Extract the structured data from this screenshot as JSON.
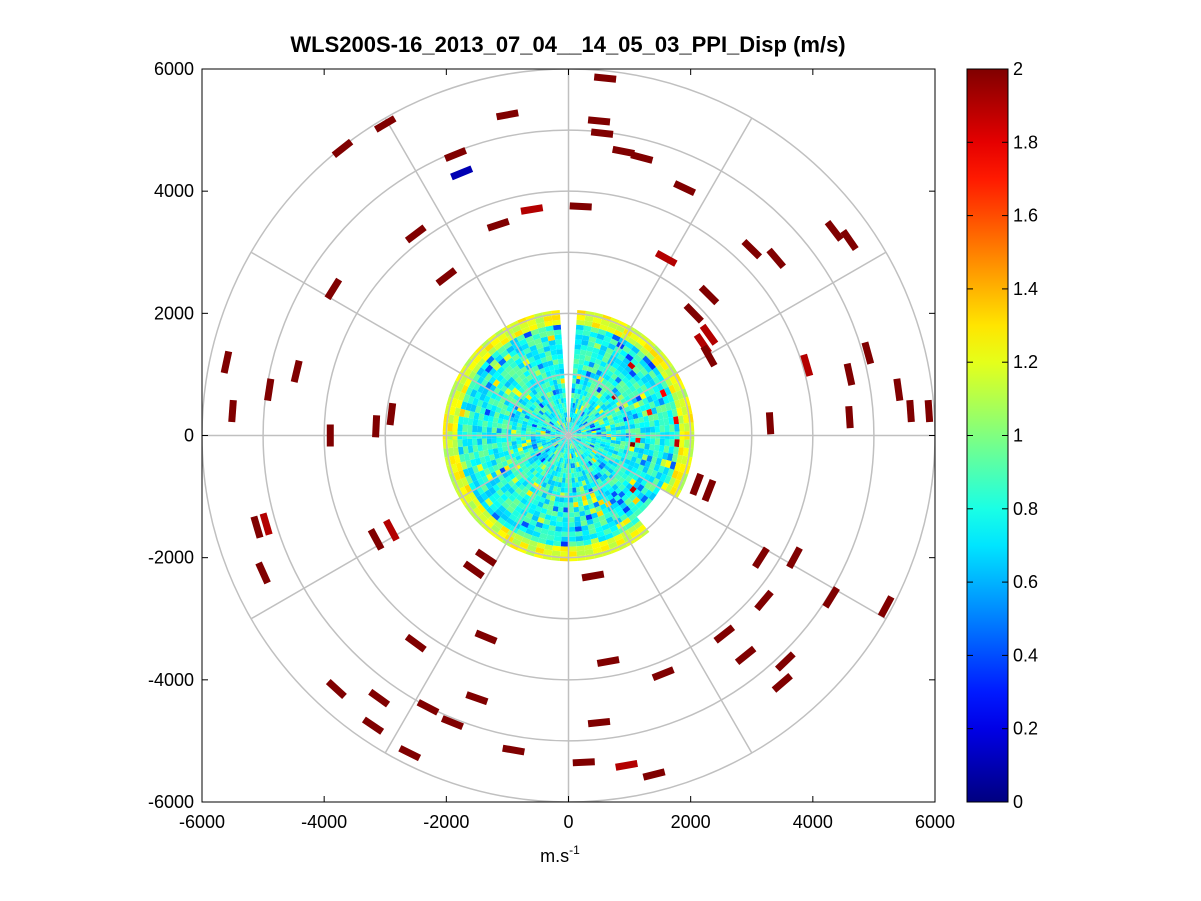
{
  "chart_data": {
    "type": "heatmap",
    "subtype": "polar-ppi",
    "title": "WLS200S-16_2013_07_04__14_05_03_PPI_Disp (m/s)",
    "xlabel": "m.s",
    "xlabel_superscript": "-1",
    "ylabel": "",
    "xlim": [
      -6000,
      6000
    ],
    "ylim": [
      -6000,
      6000
    ],
    "x_ticks": [
      -6000,
      -4000,
      -2000,
      0,
      2000,
      4000,
      6000
    ],
    "y_ticks": [
      -6000,
      -4000,
      -2000,
      0,
      2000,
      4000,
      6000
    ],
    "x_tick_labels": [
      "-6000",
      "-4000",
      "-2000",
      "0",
      "2000",
      "4000",
      "6000"
    ],
    "y_tick_labels": [
      "-6000",
      "-4000",
      "-2000",
      "0",
      "2000",
      "4000",
      "6000"
    ],
    "polar_grid": {
      "ring_radii": [
        1000,
        2000,
        3000,
        4000,
        5000,
        6000
      ],
      "spoke_angles_deg": [
        0,
        30,
        60,
        90,
        120,
        150,
        180,
        210,
        240,
        270,
        300,
        330
      ]
    },
    "colorbar": {
      "colormap": "jet",
      "min": 0,
      "max": 2,
      "ticks": [
        0,
        0.2,
        0.4,
        0.6,
        0.8,
        1,
        1.2,
        1.4,
        1.6,
        1.8,
        2
      ],
      "tick_labels": [
        "0",
        "0.2",
        "0.4",
        "0.6",
        "0.8",
        "1",
        "1.2",
        "1.4",
        "1.6",
        "1.8",
        "2"
      ]
    },
    "dense_region": {
      "radius_max": 2000,
      "typical_value": 0.8,
      "edge_value": 1.2,
      "gap_azimuth_deg": [
        -2,
        4
      ]
    },
    "sparse_gates": [
      {
        "x": 600,
        "y": 5850,
        "v": 2
      },
      {
        "x": 500,
        "y": 5150,
        "v": 2
      },
      {
        "x": 550,
        "y": 4950,
        "v": 2
      },
      {
        "x": 900,
        "y": 4650,
        "v": 2
      },
      {
        "x": 1200,
        "y": 4550,
        "v": 2
      },
      {
        "x": -1000,
        "y": 5250,
        "v": 2
      },
      {
        "x": -1850,
        "y": 4600,
        "v": 2
      },
      {
        "x": -1750,
        "y": 4300,
        "v": 0.1
      },
      {
        "x": -3000,
        "y": 5100,
        "v": 2
      },
      {
        "x": -3700,
        "y": 4700,
        "v": 2
      },
      {
        "x": -600,
        "y": 3700,
        "v": 1.9
      },
      {
        "x": -1150,
        "y": 3450,
        "v": 2
      },
      {
        "x": -3850,
        "y": 2400,
        "v": 2
      },
      {
        "x": -2500,
        "y": 3300,
        "v": 2
      },
      {
        "x": -2000,
        "y": 2600,
        "v": 2
      },
      {
        "x": 200,
        "y": 3750,
        "v": 2
      },
      {
        "x": 1900,
        "y": 4050,
        "v": 2
      },
      {
        "x": 1600,
        "y": 2900,
        "v": 1.9
      },
      {
        "x": 3000,
        "y": 3050,
        "v": 2
      },
      {
        "x": 4600,
        "y": 3200,
        "v": 2
      },
      {
        "x": 4350,
        "y": 3350,
        "v": 2
      },
      {
        "x": 3400,
        "y": 2900,
        "v": 2
      },
      {
        "x": 2300,
        "y": 2300,
        "v": 2
      },
      {
        "x": 2300,
        "y": 1650,
        "v": 1.9
      },
      {
        "x": 3900,
        "y": 1150,
        "v": 1.9
      },
      {
        "x": 4900,
        "y": 1350,
        "v": 2
      },
      {
        "x": 4600,
        "y": 1000,
        "v": 2
      },
      {
        "x": 5400,
        "y": 750,
        "v": 2
      },
      {
        "x": 5600,
        "y": 400,
        "v": 2
      },
      {
        "x": 5900,
        "y": 400,
        "v": 2
      },
      {
        "x": 4600,
        "y": 300,
        "v": 2
      },
      {
        "x": 3300,
        "y": 200,
        "v": 2
      },
      {
        "x": 2050,
        "y": 2000,
        "v": 2
      },
      {
        "x": -5600,
        "y": 1200,
        "v": 2
      },
      {
        "x": -5500,
        "y": 400,
        "v": 2
      },
      {
        "x": -4900,
        "y": 750,
        "v": 2
      },
      {
        "x": -4450,
        "y": 1050,
        "v": 2
      },
      {
        "x": -3900,
        "y": 0,
        "v": 2
      },
      {
        "x": -3150,
        "y": 150,
        "v": 2
      },
      {
        "x": -2900,
        "y": 350,
        "v": 2
      },
      {
        "x": -5100,
        "y": -1500,
        "v": 2
      },
      {
        "x": -4950,
        "y": -1450,
        "v": 1.9
      },
      {
        "x": -5000,
        "y": -2250,
        "v": 2
      },
      {
        "x": -3150,
        "y": -1700,
        "v": 2
      },
      {
        "x": -2900,
        "y": -1550,
        "v": 1.9
      },
      {
        "x": -1350,
        "y": -3300,
        "v": 2
      },
      {
        "x": -2500,
        "y": -3400,
        "v": 2
      },
      {
        "x": -3800,
        "y": -4150,
        "v": 2
      },
      {
        "x": -3100,
        "y": -4300,
        "v": 2
      },
      {
        "x": -3200,
        "y": -4750,
        "v": 2
      },
      {
        "x": -2300,
        "y": -4450,
        "v": 2
      },
      {
        "x": -1900,
        "y": -4700,
        "v": 2
      },
      {
        "x": -1500,
        "y": -4300,
        "v": 2
      },
      {
        "x": -2600,
        "y": -5200,
        "v": 2
      },
      {
        "x": -900,
        "y": -5150,
        "v": 2
      },
      {
        "x": 250,
        "y": -5350,
        "v": 2
      },
      {
        "x": 950,
        "y": -5400,
        "v": 1.9
      },
      {
        "x": 1400,
        "y": -5550,
        "v": 2
      },
      {
        "x": 500,
        "y": -4700,
        "v": 2
      },
      {
        "x": 650,
        "y": -3700,
        "v": 2
      },
      {
        "x": 1550,
        "y": -3900,
        "v": 2
      },
      {
        "x": 2550,
        "y": -3250,
        "v": 2
      },
      {
        "x": 2900,
        "y": -3600,
        "v": 2
      },
      {
        "x": 3550,
        "y": -3700,
        "v": 2
      },
      {
        "x": 3500,
        "y": -4050,
        "v": 2
      },
      {
        "x": 3200,
        "y": -2700,
        "v": 2
      },
      {
        "x": 3700,
        "y": -2000,
        "v": 2
      },
      {
        "x": 4300,
        "y": -2650,
        "v": 2
      },
      {
        "x": 5200,
        "y": -2800,
        "v": 2
      },
      {
        "x": 3150,
        "y": -2000,
        "v": 2
      },
      {
        "x": 2300,
        "y": -900,
        "v": 2
      },
      {
        "x": 2100,
        "y": -800,
        "v": 2
      },
      {
        "x": 400,
        "y": -2300,
        "v": 2
      },
      {
        "x": -1350,
        "y": -2000,
        "v": 2
      },
      {
        "x": -1550,
        "y": -2200,
        "v": 2
      },
      {
        "x": 2200,
        "y": 1500,
        "v": 1.9
      },
      {
        "x": 2300,
        "y": 1300,
        "v": 2
      }
    ]
  }
}
